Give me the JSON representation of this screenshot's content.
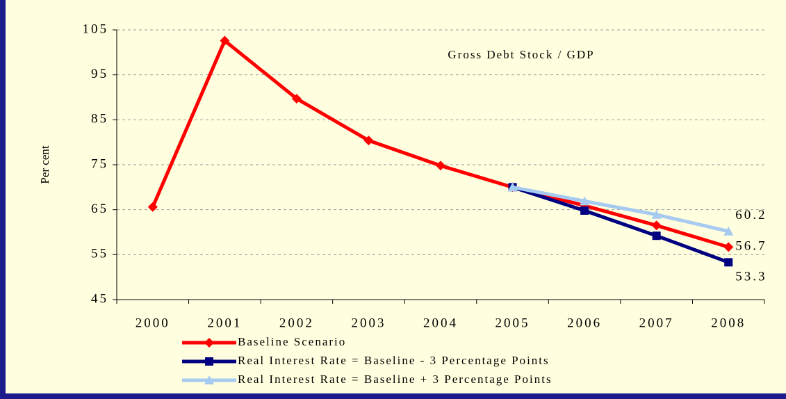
{
  "chart_data": {
    "type": "line",
    "y_label": "Per cent",
    "annotation": "Gross Debt Stock / GDP",
    "categories": [
      "2000",
      "2001",
      "2002",
      "2003",
      "2004",
      "2005",
      "2006",
      "2007",
      "2008"
    ],
    "series": [
      {
        "name": "Baseline Scenario",
        "color": "#ff0000",
        "marker": "diamond",
        "values": [
          65.6,
          102.6,
          89.7,
          80.4,
          74.8,
          70.0,
          65.9,
          61.5,
          56.7
        ]
      },
      {
        "name": "Real Interest Rate = Baseline - 3 Percentage Points",
        "color": "#000080",
        "marker": "square",
        "values": [
          null,
          null,
          null,
          null,
          null,
          70.0,
          64.8,
          59.2,
          53.3
        ]
      },
      {
        "name": "Real Interest Rate = Baseline + 3 Percentage Points",
        "color": "#a6caf0",
        "marker": "triangle",
        "values": [
          null,
          null,
          null,
          null,
          null,
          70.0,
          66.9,
          63.9,
          60.2
        ]
      }
    ],
    "ylim": [
      45,
      105
    ],
    "yticks": [
      45,
      55,
      65,
      75,
      85,
      95,
      105
    ],
    "grid": true
  }
}
